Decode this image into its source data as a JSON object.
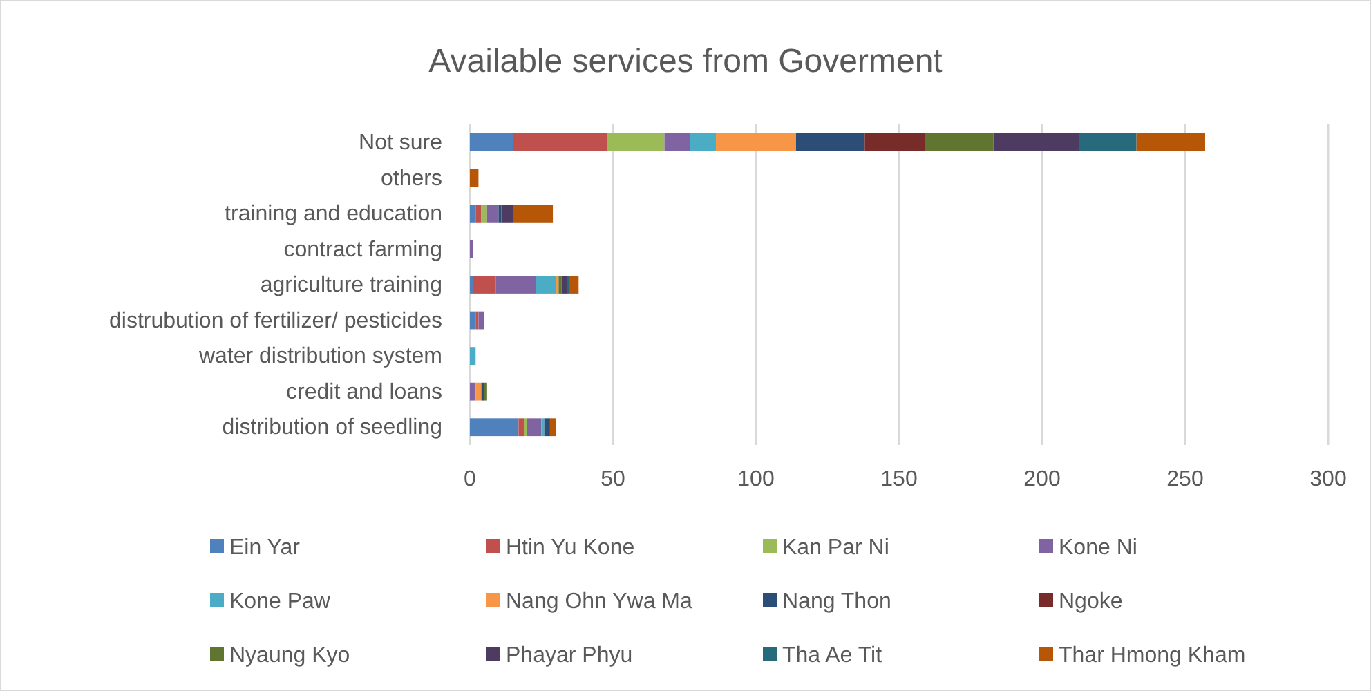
{
  "chart_data": {
    "type": "bar",
    "orientation": "horizontal",
    "stacked": true,
    "title": "Available services from Goverment",
    "categories": [
      "Not sure",
      "others",
      "training and education",
      "contract farming",
      "agriculture training",
      "distrubution of fertilizer/ pesticides",
      "water distribution system",
      "credit and loans",
      "distribution of seedling"
    ],
    "series": [
      {
        "name": "Ein Yar",
        "color": "#4f81bd",
        "values": [
          15,
          null,
          2,
          null,
          1,
          2,
          null,
          null,
          17
        ]
      },
      {
        "name": "Htin Yu Kone",
        "color": "#c0504d",
        "values": [
          33,
          null,
          2,
          null,
          8,
          1,
          null,
          null,
          2
        ]
      },
      {
        "name": "Kan Par Ni",
        "color": "#9bbb59",
        "values": [
          20,
          null,
          2,
          null,
          null,
          null,
          null,
          null,
          1
        ]
      },
      {
        "name": "Kone Ni",
        "color": "#8064a2",
        "values": [
          9,
          null,
          4,
          1,
          14,
          2,
          null,
          2,
          5
        ]
      },
      {
        "name": "Kone Paw",
        "color": "#4bacc6",
        "values": [
          9,
          null,
          null,
          null,
          7,
          null,
          2,
          null,
          1
        ]
      },
      {
        "name": "Nang Ohn Ywa Ma",
        "color": "#f79646",
        "values": [
          28,
          null,
          null,
          null,
          1,
          null,
          null,
          2,
          null
        ]
      },
      {
        "name": "Nang Thon",
        "color": "#2c4d75",
        "values": [
          24,
          null,
          1,
          null,
          null,
          null,
          null,
          1,
          2
        ]
      },
      {
        "name": "Ngoke",
        "color": "#772c2a",
        "values": [
          21,
          null,
          null,
          null,
          null,
          null,
          null,
          null,
          null
        ]
      },
      {
        "name": "Nyaung Kyo",
        "color": "#5f7530",
        "values": [
          24,
          null,
          null,
          null,
          1,
          null,
          null,
          1,
          null
        ]
      },
      {
        "name": "Phayar Phyu",
        "color": "#4d3b62",
        "values": [
          30,
          null,
          4,
          null,
          2,
          null,
          null,
          null,
          null
        ]
      },
      {
        "name": "Tha Ae Tit",
        "color": "#276a7c",
        "values": [
          20,
          null,
          null,
          null,
          1,
          null,
          null,
          null,
          null
        ]
      },
      {
        "name": "Thar Hmong Kham",
        "color": "#b65708",
        "values": [
          24,
          3,
          14,
          null,
          3,
          null,
          null,
          null,
          2
        ]
      }
    ],
    "xlim": [
      0,
      300
    ],
    "xticks": [
      0,
      50,
      100,
      150,
      200,
      250,
      300
    ],
    "grid": "x",
    "legend": "bottom"
  }
}
